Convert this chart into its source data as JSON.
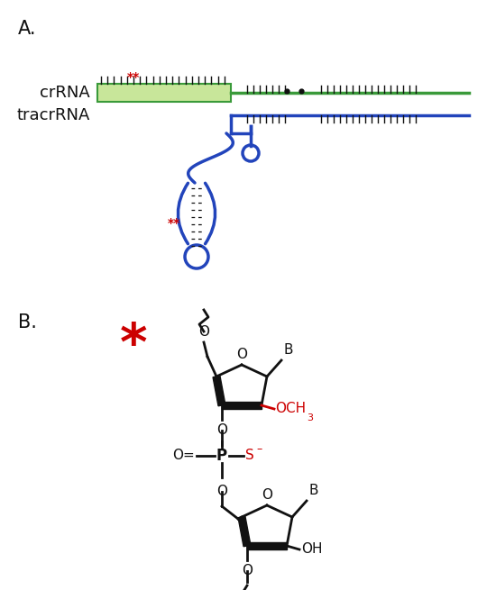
{
  "panel_A_label": "A.",
  "panel_B_label": "B.",
  "crRNA_label": "crRNA",
  "tracrRNA_label": "tracrRNA",
  "red_star_small": "**",
  "green_light": "#c8e69a",
  "green_dark": "#3a9a3a",
  "blue_rna": "#2244bb",
  "black": "#111111",
  "red": "#cc0000",
  "bg_color": "#ffffff"
}
